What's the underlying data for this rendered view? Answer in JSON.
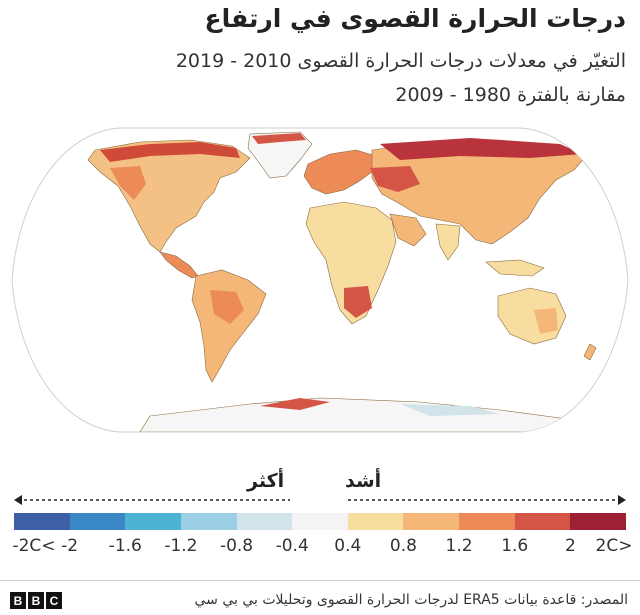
{
  "title": "درجات الحرارة القصوى في ارتفاع",
  "subtitle_line1": "التغيّر في معدلات درجات الحرارة القصوى 2010 - 2019",
  "subtitle_line2": "مقارنة بالفترة 1980 - 2009",
  "legend": {
    "label_more": "أكثر",
    "label_stronger": "أشد",
    "colors": [
      "#3c5fa6",
      "#3a87c6",
      "#4cb3d3",
      "#9ccfe6",
      "#d2e3e9",
      "#f4f4f4",
      "#f8dda0",
      "#f5b778",
      "#ec8a58",
      "#d45545",
      "#9e2035"
    ],
    "ticks": [
      "-2C<",
      "-2",
      "-1.6",
      "-1.2",
      "-0.8",
      "-0.4",
      "0.4",
      "0.8",
      "1.2",
      "1.6",
      "2",
      "2C>"
    ]
  },
  "map": {
    "projection": "robinson",
    "ocean_color": "#ffffff",
    "border_color": "#8a6a40"
  },
  "source": "المصدر: قاعدة بيانات ERA5 لدرجات الحرارة القصوى وتحليلات بي بي سي",
  "logo": "BBC"
}
